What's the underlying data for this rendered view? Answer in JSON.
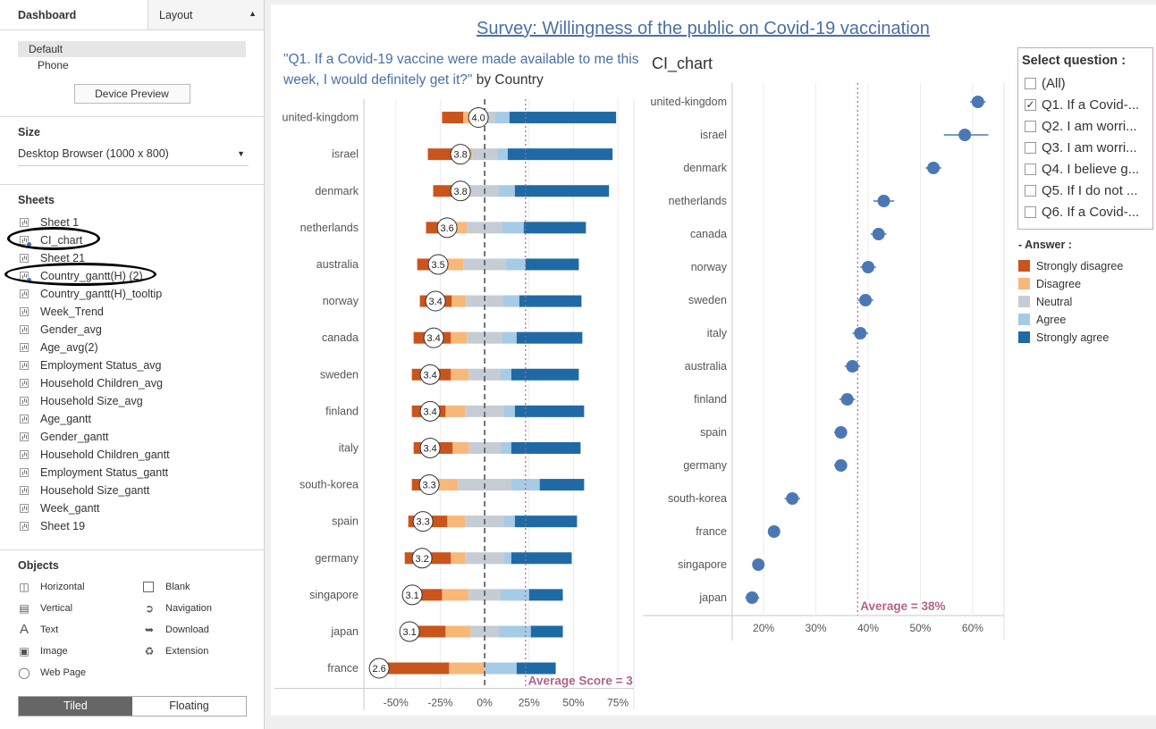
{
  "left_panel": {
    "tabs": {
      "dashboard": "Dashboard",
      "layout": "Layout"
    },
    "devices": [
      "Default",
      "Phone"
    ],
    "device_preview": "Device Preview",
    "size": {
      "heading": "Size",
      "value": "Desktop Browser (1000 x 800)"
    },
    "sheets_heading": "Sheets",
    "sheets": [
      "Sheet 1",
      "CI_chart",
      "Sheet 21",
      "Country_gantt(H) (2)",
      "Country_gantt(H)_tooltip",
      "Week_Trend",
      "Gender_avg",
      "Age_avg(2)",
      "Employment Status_avg",
      "Household Children_avg",
      "Household Size_avg",
      "Age_gantt",
      "Gender_gantt",
      "Household Children_gantt",
      "Employment Status_gantt",
      "Household Size_gantt",
      "Week_gantt",
      "Sheet 19"
    ],
    "objects_heading": "Objects",
    "objects": [
      "Horizontal",
      "Blank",
      "Vertical",
      "Navigation",
      "Text",
      "Download",
      "Image",
      "Extension",
      "Web Page"
    ],
    "tiled": "Tiled",
    "floating": "Floating"
  },
  "dashboard": {
    "title": "Survey: Willingness of the public on Covid-19 vaccination",
    "subtitle": "\"Q1. If a Covid-19 vaccine were made available to me this week, I would definitely get it?\"",
    "subtitle_suffix": "by Country",
    "ci_title": "CI_chart"
  },
  "filter": {
    "heading": "Select question :",
    "options": [
      "(All)",
      "Q1. If a Covid-...",
      "Q2. I am worri...",
      "Q3. I am worri...",
      "Q4. I believe g...",
      "Q5. If I do not ...",
      "Q6. If a Covid-..."
    ],
    "checked_index": 1
  },
  "legend": {
    "heading": "- Answer :",
    "items": [
      {
        "label": "Strongly disagree",
        "color": "#c9541c"
      },
      {
        "label": "Disagree",
        "color": "#f7b87a"
      },
      {
        "label": "Neutral",
        "color": "#c6ccd4"
      },
      {
        "label": "Agree",
        "color": "#a6cbe6"
      },
      {
        "label": "Strongly agree",
        "color": "#1f6aa5"
      }
    ]
  },
  "chart_data": [
    {
      "type": "bar",
      "stacked": "diverging",
      "categories": [
        "united-kingdom",
        "israel",
        "denmark",
        "netherlands",
        "australia",
        "norway",
        "canada",
        "sweden",
        "finland",
        "italy",
        "south-korea",
        "spain",
        "germany",
        "singapore",
        "japan",
        "france"
      ],
      "series": [
        {
          "name": "Strongly disagree",
          "values": [
            -12,
            -20,
            -14,
            -15,
            -16,
            -18,
            -21,
            -22,
            -19,
            -22,
            -10,
            -22,
            -26,
            -14,
            -16,
            -40
          ]
        },
        {
          "name": "Disagree",
          "values": [
            -6,
            -5,
            -7,
            -8,
            -10,
            -8,
            -9,
            -10,
            -11,
            -9,
            -16,
            -10,
            -8,
            -15,
            -14,
            -20
          ]
        },
        {
          "name": "Neutral",
          "values": [
            12,
            14,
            16,
            20,
            24,
            21,
            20,
            18,
            22,
            18,
            30,
            22,
            22,
            18,
            16,
            0
          ]
        },
        {
          "name": "Agree",
          "values": [
            8,
            6,
            9,
            12,
            11,
            9,
            8,
            6,
            6,
            6,
            16,
            6,
            4,
            16,
            18,
            18
          ]
        },
        {
          "name": "Strongly agree",
          "values": [
            60,
            59,
            53,
            35,
            30,
            35,
            37,
            38,
            39,
            39,
            25,
            35,
            34,
            19,
            18,
            22
          ]
        }
      ],
      "scores": [
        "4.0",
        "3.8",
        "3.8",
        "3.6",
        "3.5",
        "3.4",
        "3.4",
        "3.4",
        "3.4",
        "3.4",
        "3.3",
        "3.3",
        "3.2",
        "3.1",
        "3.1",
        "2.6"
      ],
      "xticks": [
        "-50%",
        "-25%",
        "0%",
        "25%",
        "50%",
        "75%"
      ],
      "xlim": [
        -68,
        84
      ],
      "reference_line_value": 23,
      "reference_label": "Average Score = 3"
    },
    {
      "type": "scatter",
      "categories": [
        "united-kingdom",
        "israel",
        "denmark",
        "netherlands",
        "canada",
        "norway",
        "sweden",
        "italy",
        "australia",
        "finland",
        "spain",
        "germany",
        "south-korea",
        "france",
        "singapore",
        "japan"
      ],
      "values": [
        61,
        58.5,
        52.5,
        43,
        42,
        40,
        39.5,
        38.5,
        37,
        36,
        34.8,
        34.8,
        25.5,
        22,
        19,
        17.8
      ],
      "ci_low": [
        59.5,
        54.5,
        51,
        41,
        40.5,
        38.5,
        38,
        37,
        35.5,
        34.5,
        33.5,
        33.5,
        24,
        21,
        18,
        16.5
      ],
      "ci_high": [
        62.5,
        63,
        54,
        45,
        43.5,
        41.5,
        41,
        40,
        38.5,
        37.5,
        36,
        36,
        27,
        23,
        20,
        19.2
      ],
      "xticks": [
        "20%",
        "30%",
        "40%",
        "50%",
        "60%"
      ],
      "xlim": [
        14,
        66
      ],
      "reference_line_value": 38,
      "reference_label": "Average = 38%"
    }
  ]
}
